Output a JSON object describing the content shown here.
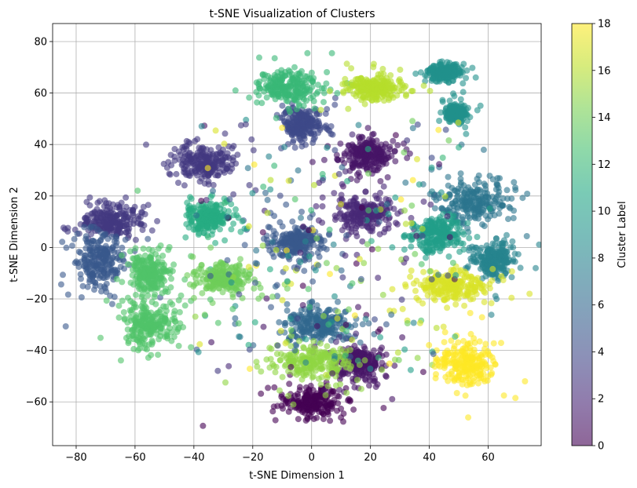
{
  "chart_data": {
    "type": "scatter",
    "title": "t-SNE Visualization of Clusters",
    "xlabel": "t-SNE Dimension 1",
    "ylabel": "t-SNE Dimension 2",
    "xlim": [
      -88,
      78
    ],
    "ylim": [
      -77,
      87
    ],
    "xticks": [
      -80,
      -60,
      -40,
      -20,
      0,
      20,
      40,
      60
    ],
    "yticks": [
      -60,
      -40,
      -20,
      0,
      20,
      40,
      60,
      80
    ],
    "grid": true,
    "colorbar": {
      "label": "Cluster Label",
      "min": 0,
      "max": 18,
      "ticks": [
        0,
        2,
        4,
        6,
        8,
        10,
        12,
        14,
        16,
        18
      ],
      "colormap": "viridis",
      "alpha": 0.6
    },
    "clusters": [
      {
        "label": 0,
        "center": [
          0,
          -60
        ],
        "spread": [
          9,
          5
        ]
      },
      {
        "label": 1,
        "center": [
          18,
          36
        ],
        "spread": [
          8,
          6
        ]
      },
      {
        "label": 1,
        "center": [
          16,
          -45
        ],
        "spread": [
          8,
          6
        ]
      },
      {
        "label": 2,
        "center": [
          18,
          13
        ],
        "spread": [
          9,
          6
        ]
      },
      {
        "label": 3,
        "center": [
          -36,
          33
        ],
        "spread": [
          9,
          6
        ]
      },
      {
        "label": 3,
        "center": [
          -68,
          10
        ],
        "spread": [
          9,
          6
        ]
      },
      {
        "label": 4,
        "center": [
          -3,
          48
        ],
        "spread": [
          6,
          6
        ]
      },
      {
        "label": 5,
        "center": [
          -5,
          2
        ],
        "spread": [
          8,
          6
        ]
      },
      {
        "label": 5,
        "center": [
          -72,
          -5
        ],
        "spread": [
          7,
          10
        ]
      },
      {
        "label": 6,
        "center": [
          2,
          -30
        ],
        "spread": [
          10,
          6
        ]
      },
      {
        "label": 7,
        "center": [
          55,
          18
        ],
        "spread": [
          11,
          7
        ]
      },
      {
        "label": 8,
        "center": [
          62,
          -5
        ],
        "spread": [
          6,
          6
        ]
      },
      {
        "label": 9,
        "center": [
          45,
          68
        ],
        "spread": [
          5,
          3
        ]
      },
      {
        "label": 9,
        "center": [
          49,
          52
        ],
        "spread": [
          3,
          3
        ]
      },
      {
        "label": 10,
        "center": [
          42,
          5
        ],
        "spread": [
          8,
          6
        ]
      },
      {
        "label": 11,
        "center": [
          -35,
          12
        ],
        "spread": [
          7,
          5
        ]
      },
      {
        "label": 12,
        "center": [
          -8,
          62
        ],
        "spread": [
          9,
          6
        ]
      },
      {
        "label": 13,
        "center": [
          -55,
          -30
        ],
        "spread": [
          8,
          7
        ]
      },
      {
        "label": 13,
        "center": [
          -55,
          -10
        ],
        "spread": [
          6,
          7
        ]
      },
      {
        "label": 14,
        "center": [
          -30,
          -12
        ],
        "spread": [
          8,
          5
        ]
      },
      {
        "label": 15,
        "center": [
          0,
          -45
        ],
        "spread": [
          12,
          6
        ]
      },
      {
        "label": 16,
        "center": [
          22,
          62
        ],
        "spread": [
          8,
          4
        ]
      },
      {
        "label": 17,
        "center": [
          48,
          -15
        ],
        "spread": [
          10,
          6
        ]
      },
      {
        "label": 18,
        "center": [
          52,
          -45
        ],
        "spread": [
          9,
          7
        ]
      }
    ]
  }
}
